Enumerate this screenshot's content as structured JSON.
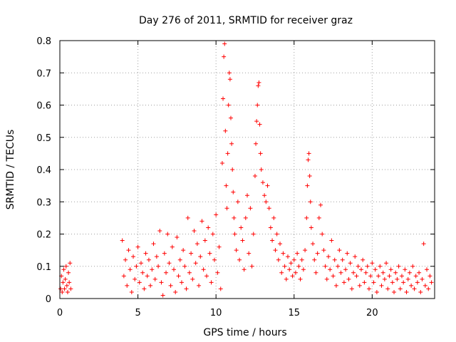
{
  "chart_data": {
    "type": "scatter",
    "title": "Day 276 of 2011, SRMTID for receiver graz",
    "xlabel": "GPS time / hours",
    "ylabel": "SRMTID / TECUs",
    "xlim": [
      0,
      24
    ],
    "ylim": [
      0,
      0.8
    ],
    "xticks": [
      0,
      5,
      10,
      15,
      20
    ],
    "yticks": [
      0,
      0.1,
      0.2,
      0.3,
      0.4,
      0.5,
      0.6,
      0.7,
      0.8
    ],
    "xtick_labels": [
      "0",
      "5",
      "10",
      "15",
      "20"
    ],
    "ytick_labels": [
      "0",
      "0.1",
      "0.2",
      "0.3",
      "0.4",
      "0.5",
      "0.6",
      "0.7",
      "0.8"
    ],
    "grid": true,
    "marker": "+",
    "color": "#ff0000",
    "series": [
      {
        "name": "SRMTID",
        "points": [
          [
            0.05,
            0.03
          ],
          [
            0.1,
            0.07
          ],
          [
            0.15,
            0.02
          ],
          [
            0.2,
            0.05
          ],
          [
            0.25,
            0.09
          ],
          [
            0.3,
            0.03
          ],
          [
            0.35,
            0.06
          ],
          [
            0.4,
            0.1
          ],
          [
            0.45,
            0.04
          ],
          [
            0.5,
            0.02
          ],
          [
            0.55,
            0.08
          ],
          [
            0.6,
            0.05
          ],
          [
            0.65,
            0.11
          ],
          [
            0.7,
            0.03
          ],
          [
            4.0,
            0.18
          ],
          [
            4.1,
            0.07
          ],
          [
            4.2,
            0.12
          ],
          [
            4.3,
            0.04
          ],
          [
            4.4,
            0.15
          ],
          [
            4.5,
            0.09
          ],
          [
            4.6,
            0.02
          ],
          [
            4.7,
            0.13
          ],
          [
            4.8,
            0.06
          ],
          [
            4.9,
            0.1
          ],
          [
            5.0,
            0.16
          ],
          [
            5.1,
            0.05
          ],
          [
            5.2,
            0.11
          ],
          [
            5.3,
            0.08
          ],
          [
            5.4,
            0.03
          ],
          [
            5.5,
            0.14
          ],
          [
            5.6,
            0.07
          ],
          [
            5.7,
            0.12
          ],
          [
            5.8,
            0.04
          ],
          [
            5.9,
            0.09
          ],
          [
            6.0,
            0.17
          ],
          [
            6.1,
            0.06
          ],
          [
            6.2,
            0.13
          ],
          [
            6.3,
            0.1
          ],
          [
            6.4,
            0.21
          ],
          [
            6.5,
            0.05
          ],
          [
            6.6,
            0.01
          ],
          [
            6.7,
            0.14
          ],
          [
            6.8,
            0.08
          ],
          [
            6.9,
            0.2
          ],
          [
            7.0,
            0.11
          ],
          [
            7.1,
            0.04
          ],
          [
            7.2,
            0.16
          ],
          [
            7.3,
            0.09
          ],
          [
            7.4,
            0.02
          ],
          [
            7.5,
            0.19
          ],
          [
            7.6,
            0.07
          ],
          [
            7.7,
            0.12
          ],
          [
            7.8,
            0.05
          ],
          [
            7.9,
            0.15
          ],
          [
            8.0,
            0.1
          ],
          [
            8.1,
            0.03
          ],
          [
            8.2,
            0.25
          ],
          [
            8.3,
            0.08
          ],
          [
            8.4,
            0.14
          ],
          [
            8.5,
            0.06
          ],
          [
            8.6,
            0.21
          ],
          [
            8.7,
            0.11
          ],
          [
            8.8,
            0.17
          ],
          [
            8.9,
            0.04
          ],
          [
            9.0,
            0.13
          ],
          [
            9.1,
            0.24
          ],
          [
            9.2,
            0.09
          ],
          [
            9.3,
            0.18
          ],
          [
            9.4,
            0.07
          ],
          [
            9.5,
            0.22
          ],
          [
            9.6,
            0.14
          ],
          [
            9.7,
            0.05
          ],
          [
            9.8,
            0.2
          ],
          [
            9.9,
            0.12
          ],
          [
            10.0,
            0.26
          ],
          [
            10.1,
            0.08
          ],
          [
            10.2,
            0.16
          ],
          [
            10.3,
            0.03
          ],
          [
            10.4,
            0.42
          ],
          [
            10.45,
            0.62
          ],
          [
            10.5,
            0.75
          ],
          [
            10.55,
            0.79
          ],
          [
            10.6,
            0.52
          ],
          [
            10.65,
            0.35
          ],
          [
            10.7,
            0.28
          ],
          [
            10.75,
            0.45
          ],
          [
            10.8,
            0.6
          ],
          [
            10.85,
            0.7
          ],
          [
            10.9,
            0.68
          ],
          [
            10.95,
            0.56
          ],
          [
            11.0,
            0.48
          ],
          [
            11.05,
            0.4
          ],
          [
            11.1,
            0.33
          ],
          [
            11.15,
            0.25
          ],
          [
            11.2,
            0.2
          ],
          [
            11.3,
            0.15
          ],
          [
            11.4,
            0.3
          ],
          [
            11.5,
            0.12
          ],
          [
            11.6,
            0.22
          ],
          [
            11.7,
            0.18
          ],
          [
            11.8,
            0.09
          ],
          [
            11.9,
            0.25
          ],
          [
            12.0,
            0.32
          ],
          [
            12.1,
            0.14
          ],
          [
            12.2,
            0.28
          ],
          [
            12.3,
            0.1
          ],
          [
            12.4,
            0.2
          ],
          [
            12.5,
            0.38
          ],
          [
            12.55,
            0.48
          ],
          [
            12.6,
            0.55
          ],
          [
            12.65,
            0.6
          ],
          [
            12.7,
            0.66
          ],
          [
            12.75,
            0.67
          ],
          [
            12.8,
            0.54
          ],
          [
            12.85,
            0.45
          ],
          [
            12.9,
            0.4
          ],
          [
            13.0,
            0.36
          ],
          [
            13.1,
            0.32
          ],
          [
            13.2,
            0.3
          ],
          [
            13.3,
            0.35
          ],
          [
            13.4,
            0.28
          ],
          [
            13.5,
            0.22
          ],
          [
            13.6,
            0.18
          ],
          [
            13.7,
            0.25
          ],
          [
            13.8,
            0.15
          ],
          [
            13.9,
            0.2
          ],
          [
            14.0,
            0.12
          ],
          [
            14.1,
            0.17
          ],
          [
            14.2,
            0.08
          ],
          [
            14.3,
            0.14
          ],
          [
            14.4,
            0.1
          ],
          [
            14.5,
            0.06
          ],
          [
            14.6,
            0.13
          ],
          [
            14.7,
            0.09
          ],
          [
            14.8,
            0.11
          ],
          [
            14.9,
            0.07
          ],
          [
            15.0,
            0.12
          ],
          [
            15.1,
            0.08
          ],
          [
            15.2,
            0.14
          ],
          [
            15.3,
            0.1
          ],
          [
            15.4,
            0.06
          ],
          [
            15.5,
            0.12
          ],
          [
            15.6,
            0.09
          ],
          [
            15.7,
            0.15
          ],
          [
            15.8,
            0.25
          ],
          [
            15.85,
            0.35
          ],
          [
            15.9,
            0.43
          ],
          [
            15.95,
            0.45
          ],
          [
            16.0,
            0.38
          ],
          [
            16.05,
            0.3
          ],
          [
            16.1,
            0.22
          ],
          [
            16.2,
            0.17
          ],
          [
            16.3,
            0.12
          ],
          [
            16.4,
            0.08
          ],
          [
            16.5,
            0.14
          ],
          [
            16.6,
            0.25
          ],
          [
            16.7,
            0.29
          ],
          [
            16.8,
            0.2
          ],
          [
            16.9,
            0.15
          ],
          [
            17.0,
            0.1
          ],
          [
            17.1,
            0.06
          ],
          [
            17.2,
            0.13
          ],
          [
            17.3,
            0.09
          ],
          [
            17.4,
            0.18
          ],
          [
            17.5,
            0.07
          ],
          [
            17.6,
            0.12
          ],
          [
            17.7,
            0.04
          ],
          [
            17.8,
            0.1
          ],
          [
            17.9,
            0.15
          ],
          [
            18.0,
            0.08
          ],
          [
            18.1,
            0.12
          ],
          [
            18.2,
            0.05
          ],
          [
            18.3,
            0.09
          ],
          [
            18.4,
            0.14
          ],
          [
            18.5,
            0.06
          ],
          [
            18.6,
            0.11
          ],
          [
            18.7,
            0.03
          ],
          [
            18.8,
            0.08
          ],
          [
            18.9,
            0.13
          ],
          [
            19.0,
            0.07
          ],
          [
            19.1,
            0.1
          ],
          [
            19.2,
            0.04
          ],
          [
            19.3,
            0.09
          ],
          [
            19.4,
            0.12
          ],
          [
            19.5,
            0.05
          ],
          [
            19.6,
            0.08
          ],
          [
            19.7,
            0.1
          ],
          [
            19.8,
            0.03
          ],
          [
            19.9,
            0.07
          ],
          [
            20.0,
            0.11
          ],
          [
            20.1,
            0.05
          ],
          [
            20.2,
            0.09
          ],
          [
            20.3,
            0.02
          ],
          [
            20.4,
            0.07
          ],
          [
            20.5,
            0.1
          ],
          [
            20.6,
            0.04
          ],
          [
            20.7,
            0.08
          ],
          [
            20.8,
            0.06
          ],
          [
            20.9,
            0.11
          ],
          [
            21.0,
            0.03
          ],
          [
            21.1,
            0.07
          ],
          [
            21.2,
            0.09
          ],
          [
            21.3,
            0.05
          ],
          [
            21.4,
            0.02
          ],
          [
            21.5,
            0.08
          ],
          [
            21.6,
            0.06
          ],
          [
            21.7,
            0.1
          ],
          [
            21.8,
            0.03
          ],
          [
            21.9,
            0.07
          ],
          [
            22.0,
            0.05
          ],
          [
            22.1,
            0.09
          ],
          [
            22.2,
            0.02
          ],
          [
            22.3,
            0.06
          ],
          [
            22.4,
            0.08
          ],
          [
            22.5,
            0.04
          ],
          [
            22.6,
            0.1
          ],
          [
            22.7,
            0.03
          ],
          [
            22.8,
            0.07
          ],
          [
            22.9,
            0.05
          ],
          [
            23.0,
            0.08
          ],
          [
            23.1,
            0.02
          ],
          [
            23.2,
            0.06
          ],
          [
            23.3,
            0.17
          ],
          [
            23.4,
            0.04
          ],
          [
            23.5,
            0.09
          ],
          [
            23.6,
            0.03
          ],
          [
            23.7,
            0.07
          ],
          [
            23.8,
            0.05
          ]
        ]
      }
    ]
  }
}
